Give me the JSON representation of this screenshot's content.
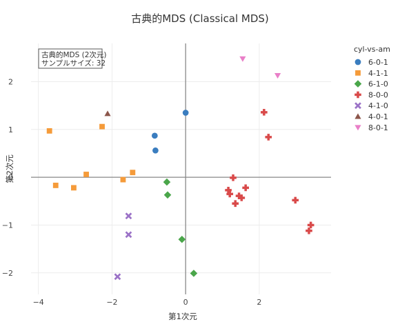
{
  "chart_data": {
    "type": "scatter",
    "title": "古典的MDS (Classical MDS)",
    "xlabel": "第1次元",
    "ylabel": "第2次元",
    "xlim": [
      -4.2,
      3.95
    ],
    "ylim": [
      -2.45,
      2.8
    ],
    "x_ticks": [
      -4,
      -2,
      0,
      2
    ],
    "y_ticks": [
      -2,
      -1,
      0,
      1,
      2
    ],
    "tick_labels": {
      "x": [
        "−4",
        "−2",
        "0",
        "2"
      ],
      "y": [
        "−2",
        "−1",
        "0",
        "1",
        "2"
      ]
    },
    "grid": true,
    "zero_lines": true,
    "legend_title": "cyl-vs-am",
    "legend_position": "right",
    "annotation": {
      "line1": "古典的MDS (2次元)",
      "line2": "サンプルサイズ: 32"
    },
    "series": [
      {
        "name": "6-0-1",
        "color": "#3a7dbf",
        "symbol": "circle",
        "points": [
          [
            -0.84,
            0.87
          ],
          [
            -0.82,
            0.56
          ],
          [
            0.0,
            1.35
          ]
        ]
      },
      {
        "name": "4-1-1",
        "color": "#f59b3a",
        "symbol": "square",
        "points": [
          [
            -3.7,
            0.97
          ],
          [
            -2.27,
            1.06
          ],
          [
            -3.53,
            -0.17
          ],
          [
            -3.04,
            -0.22
          ],
          [
            -2.7,
            0.06
          ],
          [
            -1.7,
            -0.05
          ],
          [
            -1.44,
            0.1
          ]
        ]
      },
      {
        "name": "6-1-0",
        "color": "#4aa64a",
        "symbol": "diamond",
        "points": [
          [
            -0.51,
            -0.1
          ],
          [
            -0.49,
            -0.37
          ],
          [
            -0.1,
            -1.3
          ],
          [
            0.22,
            -2.01
          ]
        ]
      },
      {
        "name": "8-0-0",
        "color": "#d94a4a",
        "symbol": "cross",
        "points": [
          [
            2.13,
            1.36
          ],
          [
            2.25,
            0.84
          ],
          [
            1.29,
            -0.01
          ],
          [
            1.16,
            -0.27
          ],
          [
            1.2,
            -0.35
          ],
          [
            1.63,
            -0.22
          ],
          [
            1.45,
            -0.39
          ],
          [
            1.52,
            -0.43
          ],
          [
            1.35,
            -0.55
          ],
          [
            2.98,
            -0.48
          ],
          [
            3.4,
            -1.0
          ],
          [
            3.35,
            -1.12
          ]
        ]
      },
      {
        "name": "4-1-0",
        "color": "#9b72c7",
        "symbol": "x",
        "points": [
          [
            -1.55,
            -0.81
          ],
          [
            -1.55,
            -1.2
          ],
          [
            -1.85,
            -2.08
          ]
        ]
      },
      {
        "name": "4-0-1",
        "color": "#8c564b",
        "symbol": "triangle-up",
        "points": [
          [
            -2.12,
            1.33
          ]
        ]
      },
      {
        "name": "8-0-1",
        "color": "#e97fc8",
        "symbol": "triangle-down",
        "points": [
          [
            1.55,
            2.48
          ],
          [
            2.5,
            2.13
          ]
        ]
      }
    ]
  }
}
